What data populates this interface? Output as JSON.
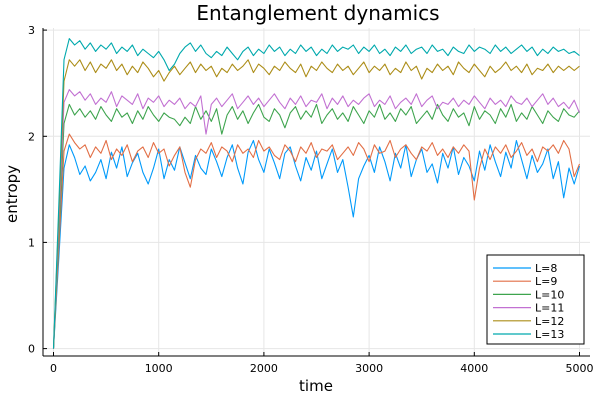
{
  "chart_data": {
    "type": "line",
    "title": "Entanglement dynamics",
    "xlabel": "time",
    "ylabel": "entropy",
    "xlim": [
      -100,
      5100
    ],
    "ylim": [
      -0.07,
      3.02
    ],
    "xticks": [
      0,
      1000,
      2000,
      3000,
      4000,
      5000
    ],
    "xtick_labels": [
      "0",
      "1000",
      "2000",
      "3000",
      "4000",
      "5000"
    ],
    "yticks": [
      0,
      1,
      2,
      3
    ],
    "ytick_labels": [
      "0",
      "1",
      "2",
      "3"
    ],
    "grid": true,
    "legend_position": "bottom-right",
    "x": [
      0,
      50,
      100,
      150,
      200,
      250,
      300,
      350,
      400,
      450,
      500,
      550,
      600,
      650,
      700,
      750,
      800,
      850,
      900,
      950,
      1000,
      1050,
      1100,
      1150,
      1200,
      1250,
      1300,
      1350,
      1400,
      1450,
      1500,
      1550,
      1600,
      1650,
      1700,
      1750,
      1800,
      1850,
      1900,
      1950,
      2000,
      2050,
      2100,
      2150,
      2200,
      2250,
      2300,
      2350,
      2400,
      2450,
      2500,
      2550,
      2600,
      2650,
      2700,
      2750,
      2800,
      2850,
      2900,
      2950,
      3000,
      3050,
      3100,
      3150,
      3200,
      3250,
      3300,
      3350,
      3400,
      3450,
      3500,
      3550,
      3600,
      3650,
      3700,
      3750,
      3800,
      3850,
      3900,
      3950,
      4000,
      4050,
      4100,
      4150,
      4200,
      4250,
      4300,
      4350,
      4400,
      4450,
      4500,
      4550,
      4600,
      4650,
      4700,
      4750,
      4800,
      4850,
      4900,
      4950,
      5000
    ],
    "series": [
      {
        "name": "L=8",
        "color": "#009AFA",
        "values": [
          0,
          0.85,
          1.7,
          1.92,
          1.8,
          1.64,
          1.72,
          1.58,
          1.66,
          1.78,
          1.6,
          1.85,
          1.7,
          1.9,
          1.62,
          1.75,
          1.84,
          1.66,
          1.55,
          1.7,
          1.88,
          1.6,
          1.78,
          1.68,
          1.9,
          1.75,
          1.6,
          1.82,
          1.7,
          1.64,
          1.88,
          1.76,
          1.62,
          1.8,
          1.92,
          1.7,
          1.55,
          1.85,
          1.96,
          1.78,
          1.66,
          1.88,
          1.75,
          1.6,
          1.84,
          1.9,
          1.72,
          1.58,
          1.8,
          1.68,
          1.86,
          1.6,
          1.74,
          1.88,
          1.66,
          1.78,
          1.52,
          1.24,
          1.6,
          1.72,
          1.82,
          1.66,
          1.9,
          1.76,
          1.58,
          1.84,
          1.7,
          1.92,
          1.62,
          1.78,
          1.88,
          1.66,
          1.74,
          1.56,
          1.84,
          1.7,
          1.9,
          1.64,
          1.8,
          1.72,
          1.58,
          1.86,
          1.68,
          1.92,
          1.76,
          1.62,
          1.85,
          1.7,
          1.96,
          1.78,
          1.6,
          1.82,
          1.66,
          1.74,
          1.88,
          1.6,
          1.76,
          1.42,
          1.7,
          1.55,
          1.72
        ]
      },
      {
        "name": "L=9",
        "color": "#E26F46",
        "values": [
          0,
          0.95,
          1.86,
          2.02,
          1.94,
          1.88,
          1.92,
          1.8,
          1.9,
          1.84,
          1.96,
          1.78,
          1.88,
          1.82,
          1.92,
          1.76,
          1.86,
          1.9,
          1.8,
          1.94,
          1.84,
          1.88,
          1.72,
          1.82,
          1.9,
          1.66,
          1.52,
          1.78,
          1.88,
          1.84,
          1.94,
          1.8,
          1.9,
          1.86,
          1.76,
          1.92,
          1.84,
          1.88,
          1.8,
          1.96,
          1.86,
          1.9,
          1.82,
          1.78,
          1.92,
          1.86,
          1.76,
          1.9,
          1.84,
          1.94,
          1.8,
          1.88,
          1.86,
          1.92,
          1.78,
          1.84,
          1.9,
          1.82,
          1.94,
          1.88,
          1.76,
          1.92,
          1.84,
          1.86,
          1.96,
          1.8,
          1.88,
          1.92,
          1.84,
          1.78,
          1.9,
          1.86,
          1.94,
          1.82,
          1.88,
          1.8,
          1.9,
          1.84,
          1.92,
          1.86,
          1.4,
          1.7,
          1.88,
          1.78,
          1.9,
          1.84,
          1.92,
          1.8,
          1.86,
          1.94,
          1.82,
          1.88,
          1.76,
          1.9,
          1.86,
          1.92,
          1.84,
          1.96,
          1.88,
          1.62,
          1.74
        ]
      },
      {
        "name": "L=10",
        "color": "#3EA44E",
        "values": [
          0,
          1.05,
          2.12,
          2.3,
          2.2,
          2.26,
          2.18,
          2.24,
          2.16,
          2.28,
          2.2,
          2.14,
          2.26,
          2.18,
          2.22,
          2.12,
          2.24,
          2.16,
          2.28,
          2.2,
          2.14,
          2.22,
          2.18,
          2.16,
          2.1,
          2.18,
          2.12,
          2.28,
          2.16,
          2.24,
          2.14,
          2.26,
          2.02,
          2.2,
          2.28,
          2.16,
          2.24,
          2.12,
          2.22,
          2.3,
          2.18,
          2.14,
          2.26,
          2.2,
          2.08,
          2.22,
          2.28,
          2.16,
          2.24,
          2.18,
          2.3,
          2.12,
          2.2,
          2.26,
          2.16,
          2.22,
          2.14,
          2.28,
          2.2,
          2.12,
          2.24,
          2.18,
          2.3,
          2.16,
          2.22,
          2.14,
          2.26,
          2.2,
          2.28,
          2.12,
          2.18,
          2.24,
          2.16,
          2.3,
          2.2,
          2.14,
          2.26,
          2.18,
          2.22,
          2.1,
          2.28,
          2.16,
          2.24,
          2.2,
          2.12,
          2.26,
          2.18,
          2.3,
          2.14,
          2.22,
          2.16,
          2.28,
          2.2,
          2.12,
          2.24,
          2.18,
          2.14,
          2.26,
          2.2,
          2.18,
          2.24
        ]
      },
      {
        "name": "L=11",
        "color": "#C271D2",
        "values": [
          0,
          1.15,
          2.32,
          2.44,
          2.38,
          2.42,
          2.34,
          2.4,
          2.3,
          2.36,
          2.32,
          2.42,
          2.28,
          2.38,
          2.34,
          2.3,
          2.4,
          2.26,
          2.36,
          2.32,
          2.38,
          2.28,
          2.34,
          2.3,
          2.36,
          2.26,
          2.32,
          2.28,
          2.38,
          2.02,
          2.3,
          2.36,
          2.28,
          2.34,
          2.4,
          2.26,
          2.32,
          2.38,
          2.3,
          2.36,
          2.28,
          2.34,
          2.4,
          2.32,
          2.26,
          2.36,
          2.3,
          2.38,
          2.28,
          2.34,
          2.32,
          2.4,
          2.26,
          2.36,
          2.3,
          2.38,
          2.28,
          2.34,
          2.3,
          2.36,
          2.4,
          2.28,
          2.34,
          2.3,
          2.38,
          2.26,
          2.32,
          2.36,
          2.3,
          2.4,
          2.28,
          2.34,
          2.38,
          2.26,
          2.32,
          2.3,
          2.36,
          2.28,
          2.34,
          2.3,
          2.38,
          2.32,
          2.26,
          2.36,
          2.3,
          2.34,
          2.28,
          2.38,
          2.32,
          2.3,
          2.36,
          2.28,
          2.34,
          2.4,
          2.3,
          2.36,
          2.28,
          2.32,
          2.26,
          2.34,
          2.22
        ]
      },
      {
        "name": "L=12",
        "color": "#AC8D18",
        "values": [
          0,
          1.25,
          2.52,
          2.72,
          2.66,
          2.72,
          2.62,
          2.7,
          2.6,
          2.68,
          2.64,
          2.72,
          2.62,
          2.68,
          2.58,
          2.66,
          2.6,
          2.7,
          2.64,
          2.56,
          2.62,
          2.52,
          2.6,
          2.66,
          2.58,
          2.64,
          2.7,
          2.6,
          2.68,
          2.62,
          2.66,
          2.56,
          2.64,
          2.6,
          2.68,
          2.62,
          2.66,
          2.72,
          2.6,
          2.68,
          2.64,
          2.58,
          2.66,
          2.62,
          2.7,
          2.64,
          2.6,
          2.68,
          2.56,
          2.66,
          2.62,
          2.7,
          2.64,
          2.6,
          2.68,
          2.62,
          2.66,
          2.58,
          2.64,
          2.7,
          2.6,
          2.66,
          2.62,
          2.68,
          2.58,
          2.64,
          2.6,
          2.7,
          2.62,
          2.66,
          2.54,
          2.64,
          2.6,
          2.68,
          2.62,
          2.66,
          2.58,
          2.7,
          2.64,
          2.6,
          2.68,
          2.62,
          2.56,
          2.66,
          2.6,
          2.64,
          2.7,
          2.62,
          2.66,
          2.6,
          2.68,
          2.58,
          2.64,
          2.62,
          2.68,
          2.6,
          2.66,
          2.62,
          2.66,
          2.62,
          2.66
        ]
      },
      {
        "name": "L=13",
        "color": "#00A9AD",
        "values": [
          0,
          1.35,
          2.72,
          2.92,
          2.86,
          2.9,
          2.82,
          2.88,
          2.8,
          2.86,
          2.82,
          2.88,
          2.78,
          2.84,
          2.8,
          2.86,
          2.76,
          2.82,
          2.78,
          2.74,
          2.8,
          2.72,
          2.62,
          2.68,
          2.78,
          2.84,
          2.88,
          2.8,
          2.86,
          2.78,
          2.74,
          2.8,
          2.76,
          2.84,
          2.78,
          2.72,
          2.8,
          2.84,
          2.76,
          2.82,
          2.78,
          2.86,
          2.8,
          2.84,
          2.76,
          2.82,
          2.78,
          2.86,
          2.8,
          2.84,
          2.76,
          2.82,
          2.78,
          2.86,
          2.8,
          2.84,
          2.82,
          2.86,
          2.78,
          2.84,
          2.8,
          2.86,
          2.78,
          2.82,
          2.76,
          2.84,
          2.8,
          2.86,
          2.78,
          2.82,
          2.84,
          2.78,
          2.86,
          2.8,
          2.82,
          2.76,
          2.84,
          2.8,
          2.78,
          2.86,
          2.8,
          2.84,
          2.82,
          2.78,
          2.86,
          2.8,
          2.84,
          2.78,
          2.82,
          2.86,
          2.8,
          2.84,
          2.76,
          2.82,
          2.78,
          2.84,
          2.8,
          2.82,
          2.78,
          2.8,
          2.76
        ]
      }
    ]
  }
}
